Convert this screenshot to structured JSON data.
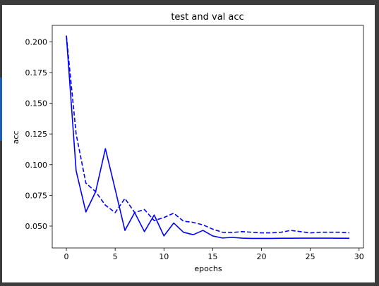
{
  "chart_data": {
    "type": "line",
    "title": "test and val acc",
    "xlabel": "epochs",
    "ylabel": "acc",
    "xlim": [
      -1.45,
      30.45
    ],
    "ylim": [
      0.0322,
      0.2134
    ],
    "xticks": [
      0,
      5,
      10,
      15,
      20,
      25,
      30
    ],
    "xtick_labels": [
      "0",
      "5",
      "10",
      "15",
      "20",
      "25",
      "30"
    ],
    "yticks": [
      0.05,
      0.075,
      0.1,
      0.125,
      0.15,
      0.175,
      0.2
    ],
    "ytick_labels": [
      "0.050",
      "0.075",
      "0.100",
      "0.125",
      "0.150",
      "0.175",
      "0.200"
    ],
    "grid": false,
    "legend": "none",
    "x": [
      0,
      1,
      2,
      3,
      4,
      5,
      6,
      7,
      8,
      9,
      10,
      11,
      12,
      13,
      14,
      15,
      16,
      17,
      18,
      19,
      20,
      21,
      22,
      23,
      24,
      25,
      26,
      27,
      28,
      29
    ],
    "series": [
      {
        "style": "solid",
        "color": "#0000ff",
        "values": [
          0.205,
          0.095,
          0.0615,
          0.078,
          0.113,
          0.08,
          0.0465,
          0.061,
          0.0455,
          0.059,
          0.042,
          0.0525,
          0.045,
          0.043,
          0.0465,
          0.042,
          0.0403,
          0.0408,
          0.0402,
          0.04,
          0.04,
          0.04,
          0.0401,
          0.0401,
          0.0402,
          0.0402,
          0.0402,
          0.0402,
          0.0401,
          0.0401
        ]
      },
      {
        "style": "dashed",
        "color": "#0000ff",
        "values": [
          0.205,
          0.125,
          0.085,
          0.078,
          0.067,
          0.061,
          0.0725,
          0.061,
          0.0635,
          0.0545,
          0.057,
          0.0605,
          0.054,
          0.053,
          0.051,
          0.0475,
          0.045,
          0.0448,
          0.0455,
          0.045,
          0.0445,
          0.0445,
          0.045,
          0.0465,
          0.0455,
          0.0445,
          0.045,
          0.045,
          0.045,
          0.0445
        ]
      }
    ]
  }
}
